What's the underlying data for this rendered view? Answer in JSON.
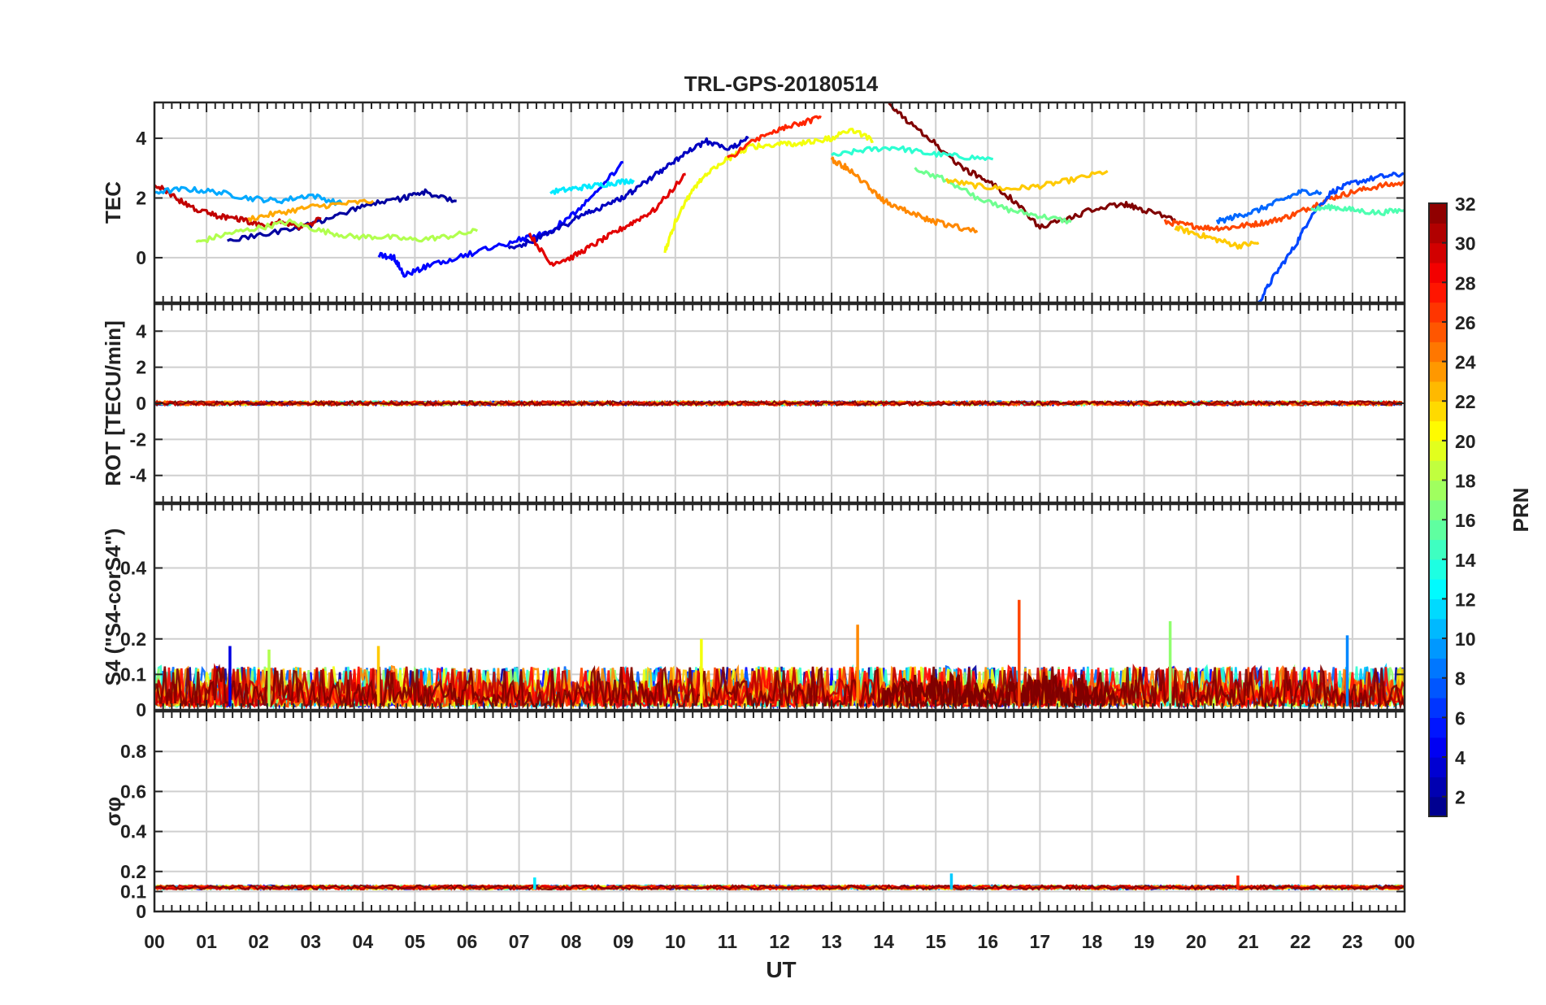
{
  "chart_data": {
    "type": "line",
    "title": "TRL-GPS-20180514",
    "xlabel": "UT",
    "x_tick_labels": [
      "00",
      "01",
      "02",
      "03",
      "04",
      "05",
      "06",
      "07",
      "08",
      "09",
      "10",
      "11",
      "12",
      "13",
      "14",
      "15",
      "16",
      "17",
      "18",
      "19",
      "20",
      "21",
      "22",
      "23",
      "00"
    ],
    "xlim": [
      0,
      24
    ],
    "grid": true,
    "colorbar": {
      "label": "PRN",
      "range": [
        1,
        32
      ],
      "tick_labels": [
        "2",
        "4",
        "6",
        "8",
        "10",
        "12",
        "14",
        "16",
        "18",
        "20",
        "22",
        "24",
        "26",
        "28",
        "30",
        "32"
      ],
      "colormap": "jet",
      "colors": [
        "#00008f",
        "#0000df",
        "#0030ff",
        "#0080ff",
        "#00d0ff",
        "#20ffdf",
        "#70ff8f",
        "#c0ff40",
        "#ffef00",
        "#ffa000",
        "#ff5000",
        "#ff0000",
        "#af0000",
        "#800000"
      ]
    },
    "panels": [
      {
        "ylabel": "TEC",
        "ylim": [
          -1.5,
          5.2
        ],
        "y_ticks": [
          0,
          2,
          4
        ],
        "y_tick_labels": [
          "0",
          "2",
          "4"
        ],
        "series": [
          {
            "prn": 2,
            "x": [
              1.4,
              2.2,
              3.0,
              3.6,
              4.2,
              4.8,
              5.2,
              5.8
            ],
            "y": [
              0.6,
              0.8,
              1.1,
              1.5,
              1.8,
              2.0,
              2.2,
              1.9
            ]
          },
          {
            "prn": 30,
            "x": [
              0.0,
              0.4,
              0.8,
              1.2,
              1.6,
              2.0,
              2.4,
              2.8,
              3.2
            ],
            "y": [
              2.5,
              2.0,
              1.6,
              1.4,
              1.3,
              1.1,
              1.2,
              1.0,
              1.3
            ]
          },
          {
            "prn": 5,
            "x": [
              4.3,
              4.6,
              4.8,
              5.2,
              5.8,
              6.4,
              7.0,
              7.5,
              8.0,
              8.5,
              9.0
            ],
            "y": [
              0.1,
              0.0,
              -0.6,
              -0.3,
              0.0,
              0.3,
              0.6,
              0.8,
              1.4,
              2.2,
              3.2
            ]
          },
          {
            "prn": 3,
            "x": [
              6.8,
              7.3,
              7.8,
              8.2,
              8.6,
              9.0,
              9.4,
              9.8,
              10.2,
              10.6,
              11.0,
              11.4
            ],
            "y": [
              0.3,
              0.6,
              1.0,
              1.4,
              1.7,
              2.0,
              2.5,
              3.0,
              3.5,
              3.9,
              3.6,
              4.0
            ]
          },
          {
            "prn": 20,
            "x": [
              9.8,
              10.0,
              10.3,
              10.6,
              11.0,
              11.4,
              11.8,
              12.2,
              12.6,
              13.0,
              13.4,
              13.8
            ],
            "y": [
              0.2,
              1.2,
              2.2,
              2.8,
              3.3,
              3.7,
              3.8,
              3.8,
              3.9,
              4.0,
              4.3,
              3.9
            ]
          },
          {
            "prn": 27,
            "x": [
              11.0,
              11.5,
              12.0,
              12.4,
              12.8
            ],
            "y": [
              3.3,
              3.9,
              4.3,
              4.5,
              4.7
            ]
          },
          {
            "prn": 24,
            "x": [
              13.0,
              13.3,
              13.7,
              14.0,
              14.4,
              14.8,
              15.2,
              15.8
            ],
            "y": [
              3.3,
              3.0,
              2.4,
              1.9,
              1.6,
              1.3,
              1.1,
              0.9
            ]
          },
          {
            "prn": 32,
            "x": [
              14.1,
              14.5,
              15.0,
              15.5,
              16.0,
              16.5,
              17.0,
              17.5,
              18.0,
              18.6,
              19.0,
              19.6
            ],
            "y": [
              5.2,
              4.5,
              3.8,
              3.0,
              2.6,
              1.9,
              1.0,
              1.3,
              1.6,
              1.8,
              1.6,
              1.3
            ]
          },
          {
            "prn": 16,
            "x": [
              14.6,
              15.2,
              15.8,
              16.4,
              17.0,
              17.6
            ],
            "y": [
              3.0,
              2.6,
              2.0,
              1.6,
              1.4,
              1.2
            ]
          },
          {
            "prn": 22,
            "x": [
              15.2,
              15.8,
              16.4,
              17.0,
              17.6,
              18.3
            ],
            "y": [
              2.6,
              2.4,
              2.3,
              2.4,
              2.6,
              2.9
            ]
          },
          {
            "prn": 14,
            "x": [
              13.0,
              13.6,
              14.2,
              14.8,
              15.4,
              16.1
            ],
            "y": [
              3.4,
              3.6,
              3.7,
              3.5,
              3.4,
              3.3
            ]
          },
          {
            "prn": 26,
            "x": [
              19.4,
              19.8,
              20.2,
              20.6,
              21.0,
              21.4,
              21.8,
              22.2,
              22.6,
              23.0,
              23.5,
              24.0
            ],
            "y": [
              1.2,
              1.1,
              1.0,
              1.0,
              1.1,
              1.2,
              1.4,
              1.7,
              2.0,
              2.2,
              2.4,
              2.5
            ]
          },
          {
            "prn": 7,
            "x": [
              21.2,
              21.5,
              21.9,
              22.2,
              22.6,
              23.0,
              23.5,
              24.0
            ],
            "y": [
              -1.5,
              -0.6,
              0.4,
              1.4,
              2.2,
              2.5,
              2.7,
              2.8
            ]
          },
          {
            "prn": 22,
            "x": [
              19.6,
              20.0,
              20.4,
              20.8,
              21.2
            ],
            "y": [
              1.0,
              0.8,
              0.6,
              0.4,
              0.5
            ]
          },
          {
            "prn": 18,
            "x": [
              0.8,
              1.4,
              2.0,
              2.6,
              3.2,
              3.8,
              4.4,
              5.0,
              5.6,
              6.2
            ],
            "y": [
              0.5,
              0.8,
              1.0,
              1.2,
              0.9,
              0.7,
              0.7,
              0.6,
              0.7,
              0.9
            ]
          },
          {
            "prn": 10,
            "x": [
              0.0,
              0.6,
              1.2,
              1.8,
              2.4,
              3.0,
              3.6
            ],
            "y": [
              2.2,
              2.3,
              2.2,
              2.0,
              1.9,
              2.1,
              1.8
            ]
          },
          {
            "prn": 12,
            "x": [
              7.6,
              8.0,
              8.4,
              8.8,
              9.2
            ],
            "y": [
              2.2,
              2.3,
              2.4,
              2.5,
              2.6
            ]
          },
          {
            "prn": 29,
            "x": [
              7.2,
              7.6,
              8.0,
              8.4,
              8.8,
              9.2,
              9.6,
              10.2
            ],
            "y": [
              0.8,
              -0.2,
              0.0,
              0.4,
              0.8,
              1.2,
              1.6,
              2.8
            ]
          },
          {
            "prn": 23,
            "x": [
              1.8,
              2.4,
              3.0,
              3.6,
              4.2
            ],
            "y": [
              1.3,
              1.5,
              1.7,
              1.8,
              1.9
            ]
          },
          {
            "prn": 8,
            "x": [
              20.4,
              20.8,
              21.2,
              21.6,
              22.0,
              22.4
            ],
            "y": [
              1.2,
              1.4,
              1.6,
              1.9,
              2.2,
              2.2
            ]
          },
          {
            "prn": 15,
            "x": [
              22.2,
              22.6,
              23.0,
              23.5,
              24.0
            ],
            "y": [
              1.6,
              1.7,
              1.6,
              1.5,
              1.6
            ]
          }
        ]
      },
      {
        "ylabel": "ROT [TECU/min]",
        "ylim": [
          -5.5,
          5.5
        ],
        "y_ticks": [
          -4,
          -2,
          0,
          2,
          4
        ],
        "y_tick_labels": [
          "-4",
          "-2",
          "0",
          "2",
          "4"
        ],
        "noise_band": [
          -0.15,
          0.15
        ]
      },
      {
        "ylabel": "S4 (\"S4-corS4\")",
        "ylim": [
          0,
          0.58
        ],
        "y_ticks": [
          0,
          0.1,
          0.2,
          0.4
        ],
        "y_tick_labels": [
          "0",
          "0.1",
          "0.2",
          "0.4"
        ],
        "baseline_band": [
          0.01,
          0.1
        ],
        "spikes": [
          {
            "x": 1.45,
            "y": 0.18,
            "prn": 4
          },
          {
            "x": 2.2,
            "y": 0.17,
            "prn": 18
          },
          {
            "x": 4.3,
            "y": 0.18,
            "prn": 22
          },
          {
            "x": 10.5,
            "y": 0.2,
            "prn": 20
          },
          {
            "x": 13.5,
            "y": 0.24,
            "prn": 24
          },
          {
            "x": 16.6,
            "y": 0.31,
            "prn": 26
          },
          {
            "x": 19.5,
            "y": 0.25,
            "prn": 17
          },
          {
            "x": 22.9,
            "y": 0.21,
            "prn": 9
          }
        ]
      },
      {
        "ylabel": "σφ",
        "ylim": [
          0,
          1.0
        ],
        "y_ticks": [
          0,
          0.1,
          0.2,
          0.4,
          0.6,
          0.8
        ],
        "y_tick_labels": [
          "0",
          "0.1",
          "0.2",
          "0.4",
          "0.6",
          "0.8"
        ],
        "baseline_band": [
          0.11,
          0.14
        ],
        "spikes": [
          {
            "x": 15.3,
            "y": 0.19,
            "prn": 11
          },
          {
            "x": 20.8,
            "y": 0.18,
            "prn": 27
          },
          {
            "x": 7.3,
            "y": 0.17,
            "prn": 12
          }
        ]
      }
    ]
  }
}
